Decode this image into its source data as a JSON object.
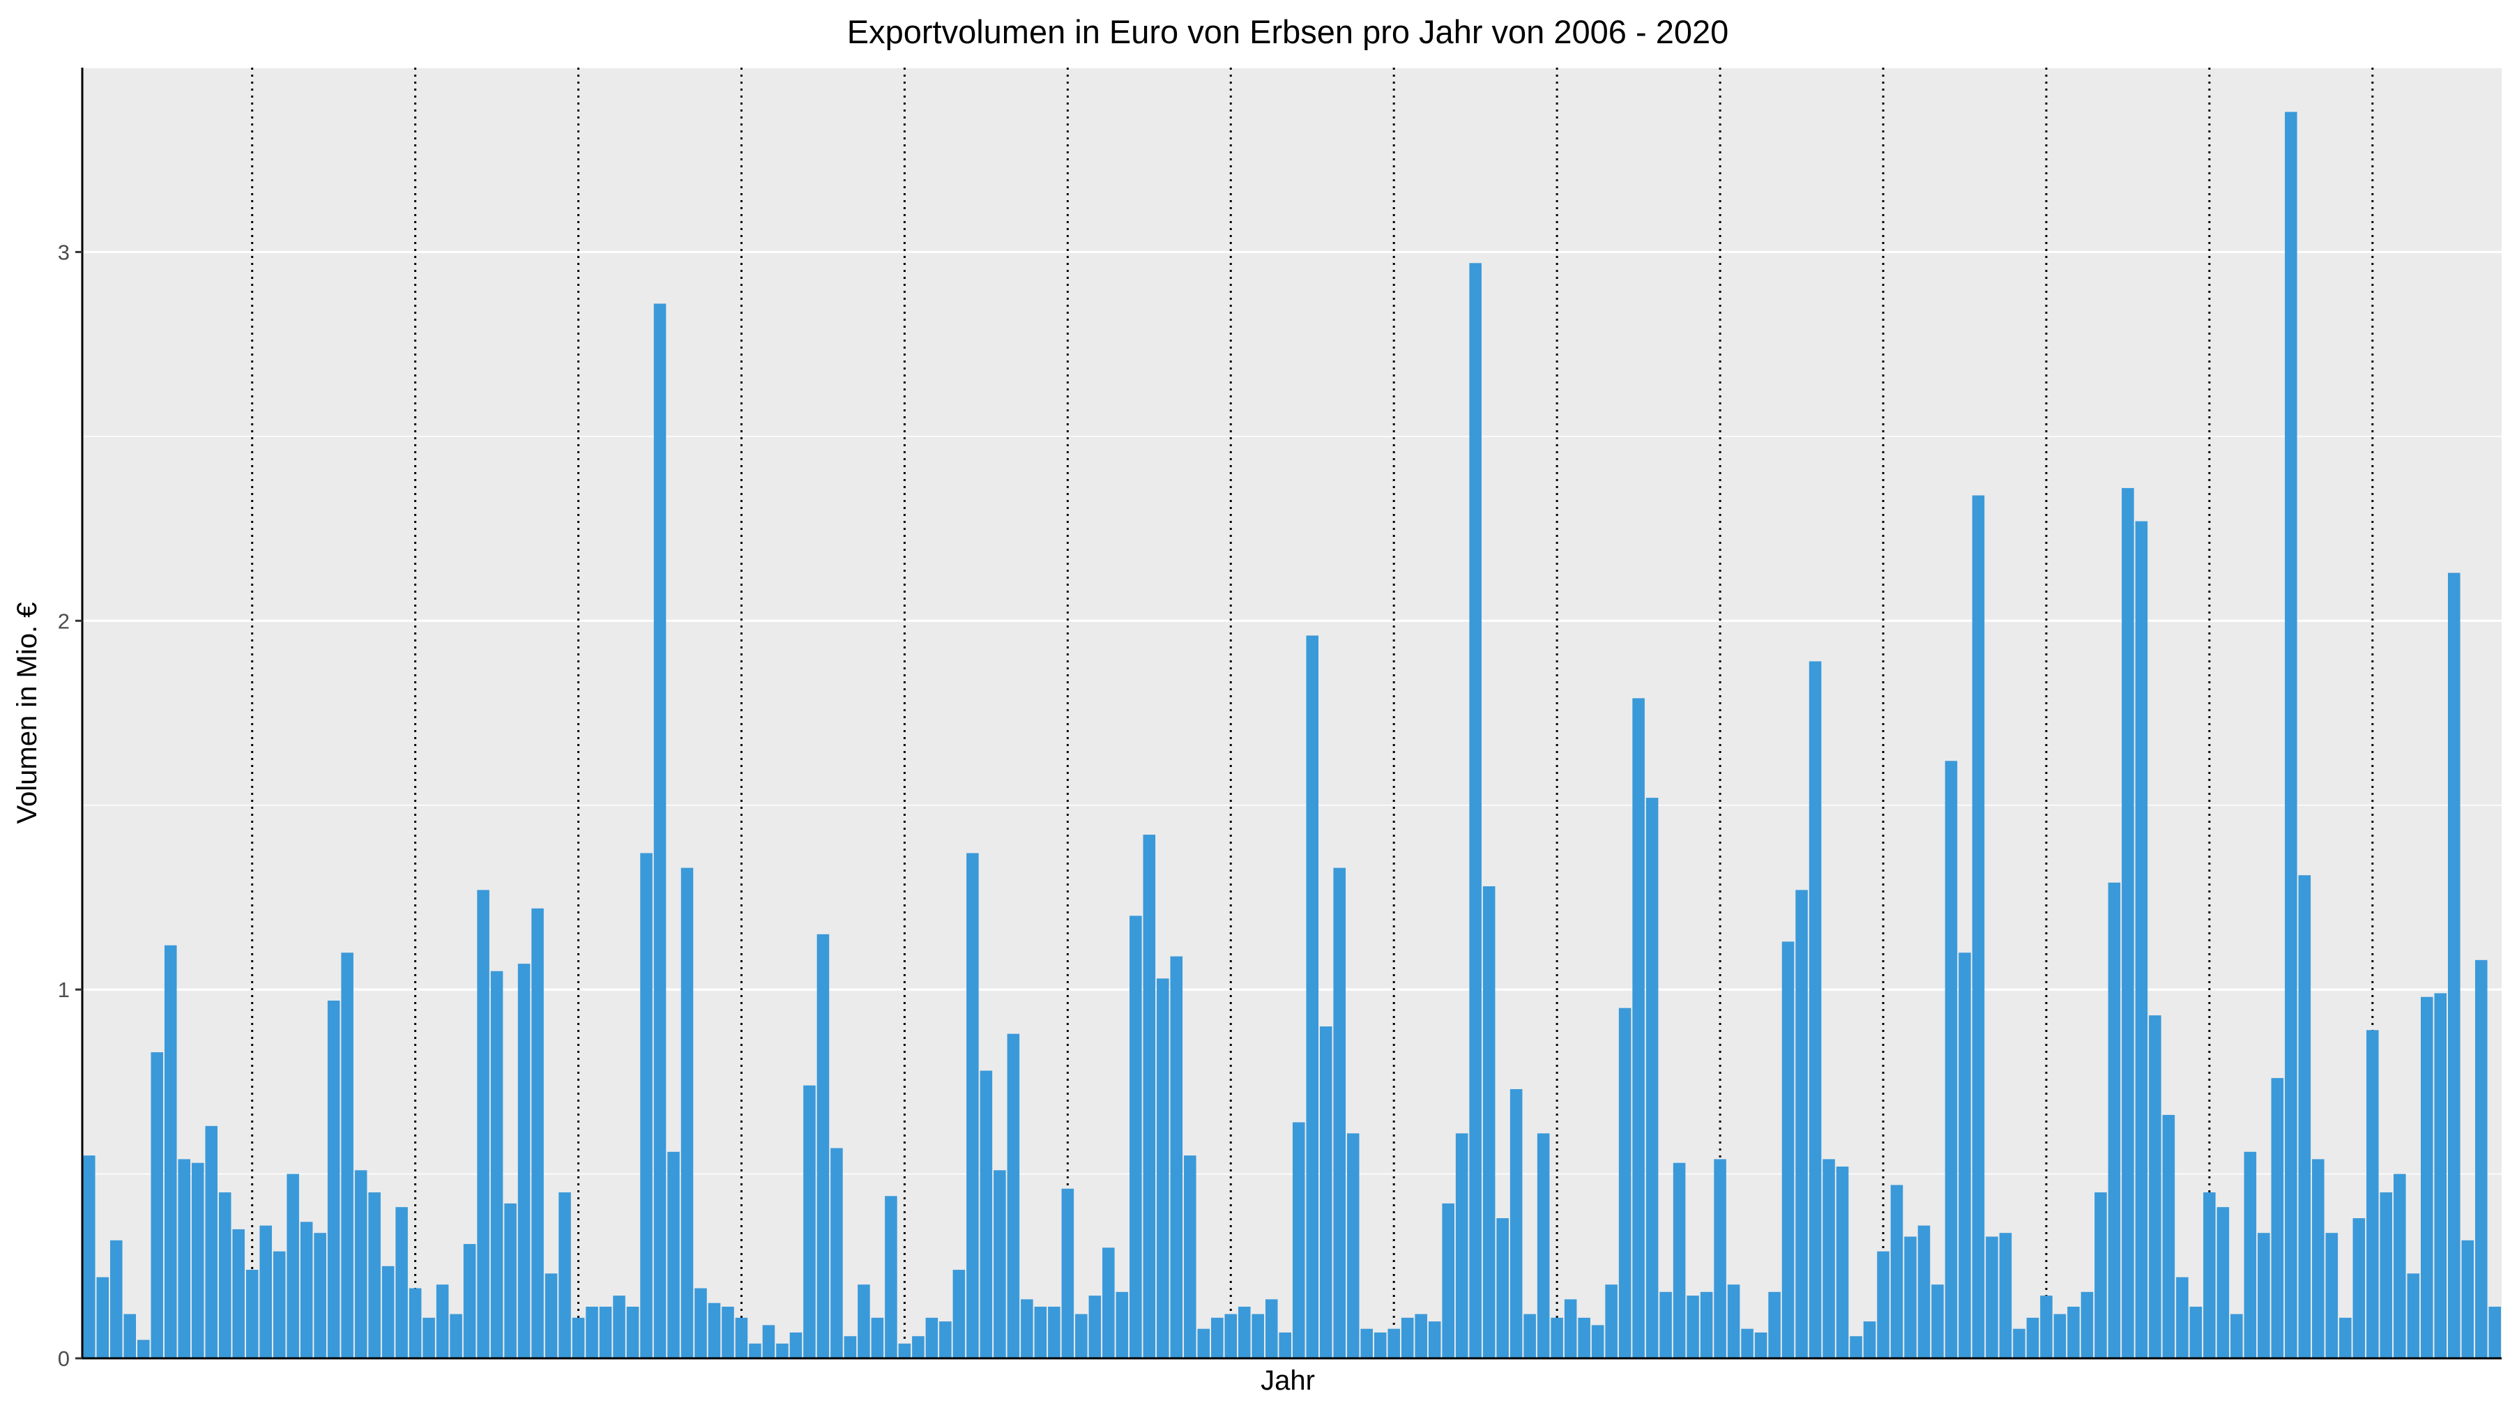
{
  "chart_data": {
    "type": "bar",
    "title": "Exportvolumen in Euro von Erbsen pro Jahr von 2006 - 2020",
    "xlabel": "Jahr",
    "ylabel": "Volumen in Mio. €",
    "ylim": [
      0,
      3.5
    ],
    "yticks": [
      0,
      1,
      2,
      3
    ],
    "grid": true,
    "legend": "none",
    "bar_color": "#3a99d9",
    "panel_color": "#ebebeb",
    "year_separator_style": "dotted",
    "months_per_year": 12,
    "values": [
      0.55,
      0.22,
      0.32,
      0.12,
      0.05,
      0.83,
      1.12,
      0.54,
      0.53,
      0.63,
      0.45,
      0.35,
      0.24,
      0.36,
      0.29,
      0.5,
      0.37,
      0.34,
      0.97,
      1.1,
      0.51,
      0.45,
      0.25,
      0.41,
      0.19,
      0.11,
      0.2,
      0.12,
      0.31,
      1.27,
      1.05,
      0.42,
      1.07,
      1.22,
      0.23,
      0.45,
      0.11,
      0.14,
      0.14,
      0.17,
      0.14,
      1.37,
      2.86,
      0.56,
      1.33,
      0.19,
      0.15,
      0.14,
      0.11,
      0.04,
      0.09,
      0.04,
      0.07,
      0.74,
      1.15,
      0.57,
      0.06,
      0.2,
      0.11,
      0.44,
      0.04,
      0.06,
      0.11,
      0.1,
      0.24,
      1.37,
      0.78,
      0.51,
      0.88,
      0.16,
      0.14,
      0.14,
      0.46,
      0.12,
      0.17,
      0.3,
      0.18,
      1.2,
      1.42,
      1.03,
      1.09,
      0.55,
      0.08,
      0.11,
      0.12,
      0.14,
      0.12,
      0.16,
      0.07,
      0.64,
      1.96,
      0.9,
      1.33,
      0.61,
      0.08,
      0.07,
      0.08,
      0.11,
      0.12,
      0.1,
      0.42,
      0.61,
      2.97,
      1.28,
      0.38,
      0.73,
      0.12,
      0.61,
      0.11,
      0.16,
      0.11,
      0.09,
      0.2,
      0.95,
      1.79,
      1.52,
      0.18,
      0.53,
      0.17,
      0.18,
      0.54,
      0.2,
      0.08,
      0.07,
      0.18,
      1.13,
      1.27,
      1.89,
      0.54,
      0.52,
      0.06,
      0.1,
      0.29,
      0.47,
      0.33,
      0.36,
      0.2,
      1.62,
      1.1,
      2.34,
      0.33,
      0.34,
      0.08,
      0.11,
      0.17,
      0.12,
      0.14,
      0.18,
      0.45,
      1.29,
      2.36,
      2.27,
      0.93,
      0.66,
      0.22,
      0.14,
      0.45,
      0.41,
      0.12,
      0.56,
      0.34,
      0.76,
      3.38,
      1.31,
      0.54,
      0.34,
      0.11,
      0.38,
      0.89,
      0.45,
      0.5,
      0.23,
      0.98,
      0.99,
      2.13,
      0.32,
      1.08,
      0.14
    ]
  }
}
